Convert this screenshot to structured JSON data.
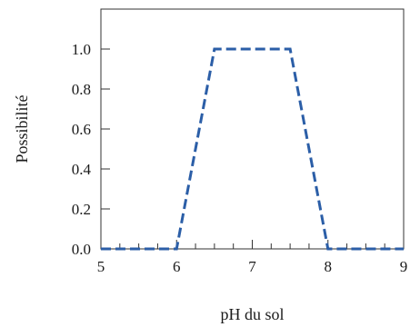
{
  "chart_data": {
    "type": "line",
    "title": "",
    "xlabel": "pH du sol",
    "ylabel": "Possibilité",
    "xlim": [
      5,
      9
    ],
    "ylim": [
      0,
      1.2
    ],
    "grid": false,
    "x_ticks": [
      5,
      6,
      7,
      8,
      9
    ],
    "x_tick_labels": [
      "5",
      "6",
      "7",
      "8",
      "9"
    ],
    "x_minor_step": 0.25,
    "y_ticks": [
      0.0,
      0.2,
      0.4,
      0.6,
      0.8,
      1.0
    ],
    "y_tick_labels": [
      "0.0",
      "0.2",
      "0.4",
      "0.6",
      "0.8",
      "1.0"
    ],
    "series": [
      {
        "x": [
          5,
          6,
          6.5,
          7.5,
          8,
          9
        ],
        "y": [
          0,
          0,
          1,
          1,
          0,
          0
        ],
        "color": "#2b5ea7",
        "line_style": "dashed"
      }
    ]
  }
}
